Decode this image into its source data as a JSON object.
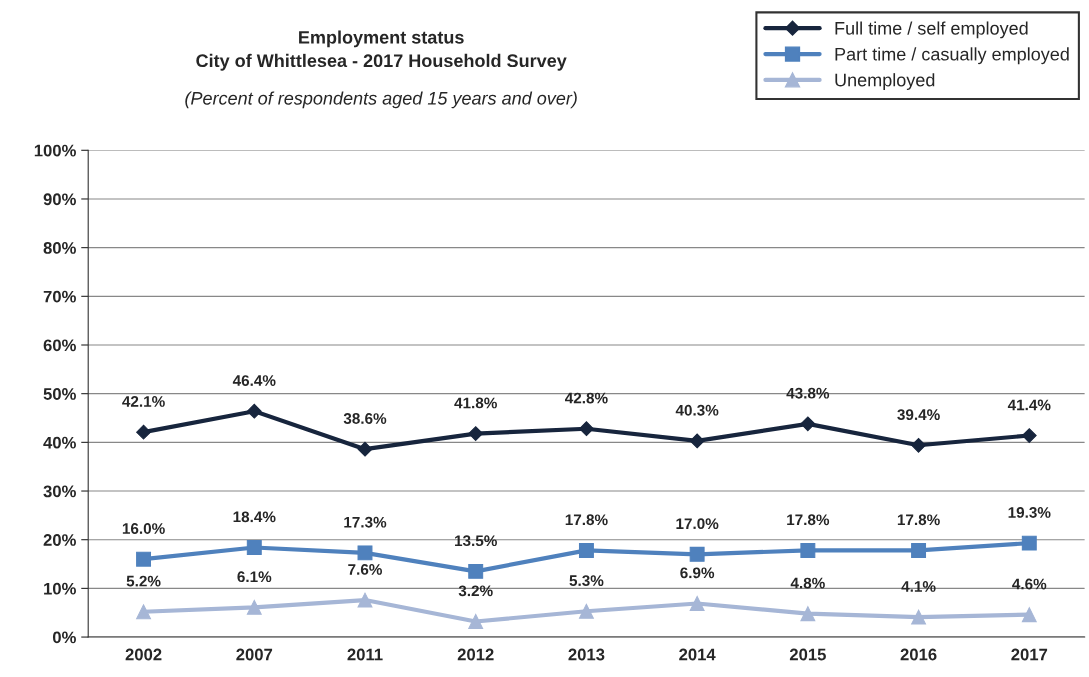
{
  "chart_data": {
    "type": "line",
    "title": "Employment status\nCity of Whittlesea - 2017 Household Survey",
    "subtitle": "(Percent of respondents aged 15 years and over)",
    "categories": [
      "2002",
      "2007",
      "2011",
      "2012",
      "2013",
      "2014",
      "2015",
      "2016",
      "2017"
    ],
    "series": [
      {
        "name": "Full time / self employed",
        "color": "#17253d",
        "marker": "diamond",
        "values": [
          42.1,
          46.4,
          38.6,
          41.8,
          42.8,
          40.3,
          43.8,
          39.4,
          41.4
        ],
        "value_labels": [
          "42.1%",
          "46.4%",
          "38.6%",
          "41.8%",
          "42.8%",
          "40.3%",
          "43.8%",
          "39.4%",
          "41.4%"
        ]
      },
      {
        "name": "Part time / casually employed",
        "color": "#4f81bd",
        "marker": "square",
        "values": [
          16.0,
          18.4,
          17.3,
          13.5,
          17.8,
          17.0,
          17.8,
          17.8,
          19.3
        ],
        "value_labels": [
          "16.0%",
          "18.4%",
          "17.3%",
          "13.5%",
          "17.8%",
          "17.0%",
          "17.8%",
          "17.8%",
          "19.3%"
        ]
      },
      {
        "name": "Unemployed",
        "color": "#a6b6d6",
        "marker": "triangle",
        "values": [
          5.2,
          6.1,
          7.6,
          3.2,
          5.3,
          6.9,
          4.8,
          4.1,
          4.6
        ],
        "value_labels": [
          "5.2%",
          "6.1%",
          "7.6%",
          "3.2%",
          "5.3%",
          "6.9%",
          "4.8%",
          "4.1%",
          "4.6%"
        ]
      }
    ],
    "ylim": [
      0,
      100
    ],
    "yticks": [
      {
        "value": 0,
        "label": "0%"
      },
      {
        "value": 10,
        "label": "10%"
      },
      {
        "value": 20,
        "label": "20%"
      },
      {
        "value": 30,
        "label": "30%"
      },
      {
        "value": 40,
        "label": "40%"
      },
      {
        "value": 50,
        "label": "50%"
      },
      {
        "value": 60,
        "label": "60%"
      },
      {
        "value": 70,
        "label": "70%"
      },
      {
        "value": 80,
        "label": "80%"
      },
      {
        "value": 90,
        "label": "90%"
      },
      {
        "value": 100,
        "label": "100%"
      }
    ],
    "grid": "y",
    "legend": "top right",
    "line_style": "solid"
  }
}
